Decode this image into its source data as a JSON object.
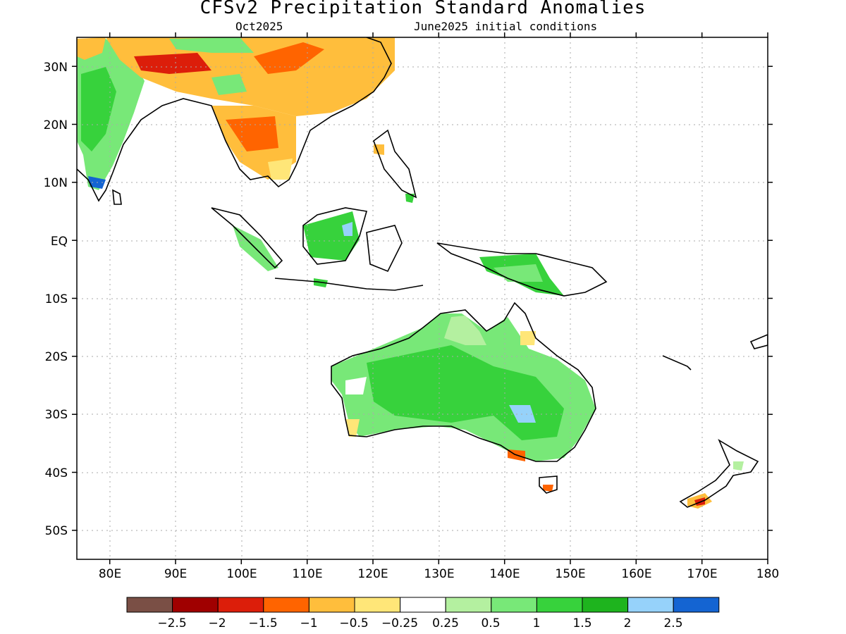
{
  "title": "CFSv2 Precipitation Standard Anomalies",
  "subtitle_left": "Oct2025",
  "subtitle_right": "June2025 initial conditions",
  "map": {
    "lon_range": [
      75,
      180
    ],
    "lat_range": [
      -55,
      35
    ],
    "lon_ticks": [
      "80E",
      "90E",
      "100E",
      "110E",
      "120E",
      "130E",
      "140E",
      "150E",
      "160E",
      "170E",
      "180"
    ],
    "lat_ticks": [
      "30N",
      "20N",
      "10N",
      "EQ",
      "10S",
      "20S",
      "30S",
      "40S",
      "50S"
    ],
    "gridlines": "dotted"
  },
  "colorbar": {
    "colors": [
      "#7a4f45",
      "#a00000",
      "#dc1e0a",
      "#ff6400",
      "#ffbe3c",
      "#ffe678",
      "#ffffff",
      "#b4f0a0",
      "#78e878",
      "#37d23c",
      "#1eb41e",
      "#96d2fa",
      "#1464d2"
    ],
    "labels": [
      "-2.5",
      "-2",
      "-1.5",
      "-1",
      "-0.5",
      "-0.25",
      "0.25",
      "0.5",
      "1",
      "1.5",
      "2",
      "2.5"
    ]
  }
}
